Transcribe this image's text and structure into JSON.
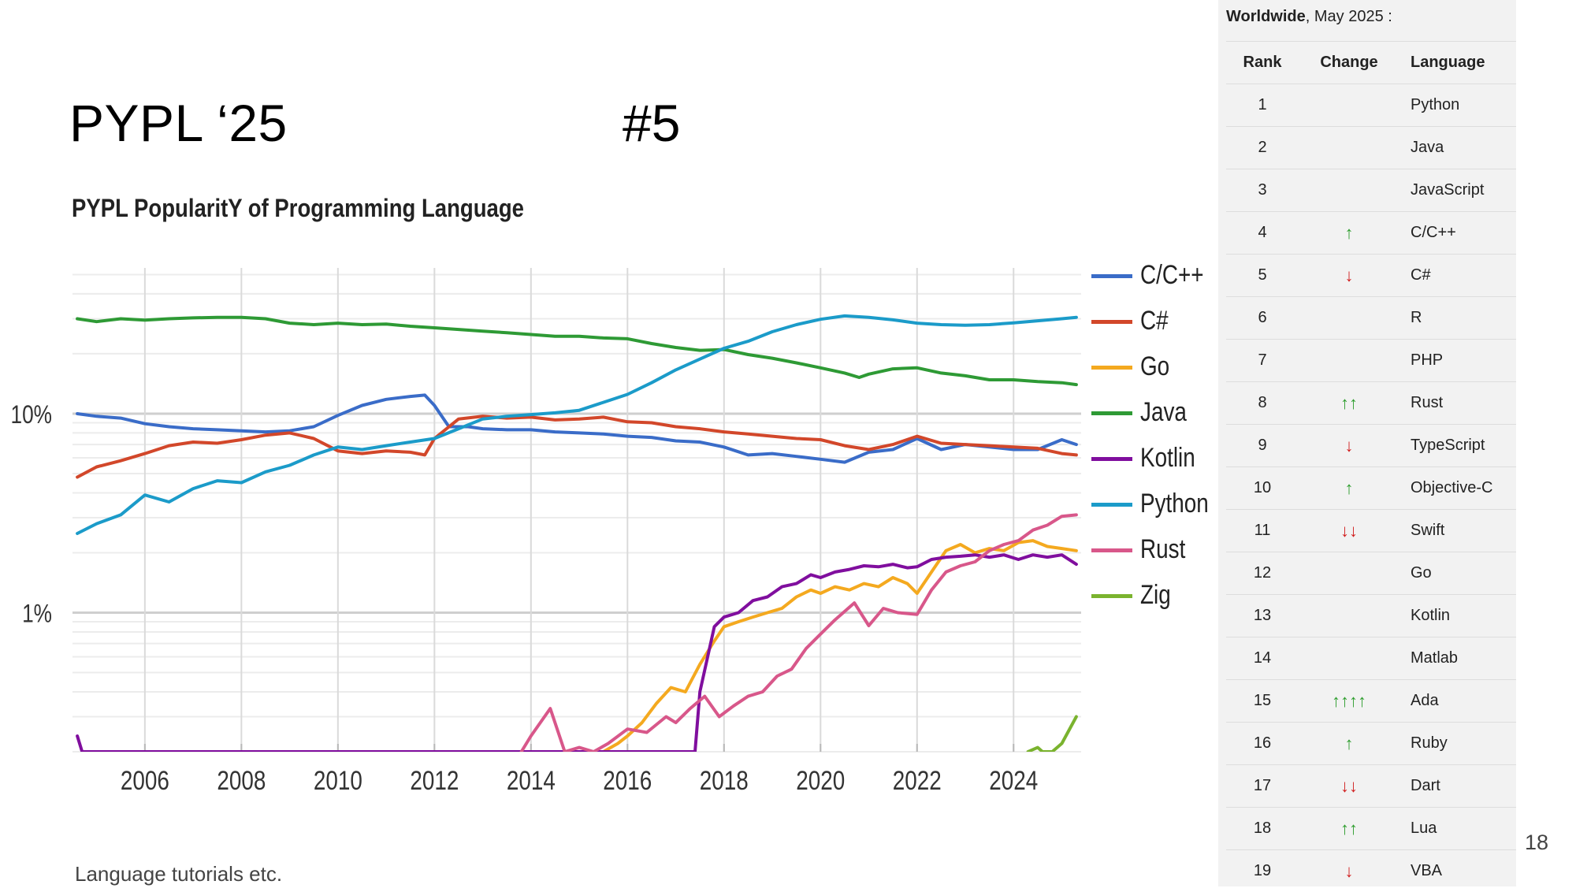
{
  "slide": {
    "title": "PYPL ‘25",
    "rank_label": "#5",
    "footer_note": "Language tutorials etc.",
    "page_number": "18"
  },
  "chart_data": {
    "type": "line",
    "title": "PYPL PopularitY of Programming Language",
    "xlabel": "",
    "ylabel": "",
    "yscale": "log",
    "ylim": [
      0.2,
      100
    ],
    "y_ticks": [
      "10%",
      "1%"
    ],
    "x_ticks": [
      "2006",
      "2008",
      "2010",
      "2012",
      "2014",
      "2016",
      "2018",
      "2020",
      "2022",
      "2024"
    ],
    "grid": true,
    "legend_position": "right",
    "series": [
      {
        "name": "C/C++",
        "color": "#3a6cc8",
        "x": [
          2004.6,
          2005.0,
          2005.5,
          2006.0,
          2006.5,
          2007.0,
          2007.5,
          2008.0,
          2008.5,
          2009.0,
          2009.5,
          2010.0,
          2010.5,
          2011.0,
          2011.5,
          2011.8,
          2012.0,
          2012.3,
          2012.7,
          2013.0,
          2013.5,
          2014.0,
          2014.5,
          2015.0,
          2015.5,
          2016.0,
          2016.5,
          2017.0,
          2017.5,
          2018.0,
          2018.5,
          2019.0,
          2019.5,
          2020.0,
          2020.5,
          2021.0,
          2021.5,
          2022.0,
          2022.5,
          2023.0,
          2023.5,
          2024.0,
          2024.5,
          2025.0,
          2025.3
        ],
        "y": [
          10.0,
          9.7,
          9.5,
          8.9,
          8.6,
          8.4,
          8.3,
          8.2,
          8.1,
          8.2,
          8.6,
          9.8,
          11.0,
          11.8,
          12.2,
          12.4,
          11.0,
          8.6,
          8.6,
          8.4,
          8.3,
          8.3,
          8.1,
          8.0,
          7.9,
          7.7,
          7.6,
          7.3,
          7.2,
          6.8,
          6.2,
          6.3,
          6.1,
          5.9,
          5.7,
          6.4,
          6.6,
          7.5,
          6.6,
          7.0,
          6.8,
          6.6,
          6.6,
          7.4,
          7.0
        ]
      },
      {
        "name": "C#",
        "color": "#d2472a",
        "x": [
          2004.6,
          2005.0,
          2005.5,
          2006.0,
          2006.5,
          2007.0,
          2007.5,
          2008.0,
          2008.5,
          2009.0,
          2009.5,
          2010.0,
          2010.5,
          2011.0,
          2011.5,
          2011.8,
          2012.0,
          2012.5,
          2013.0,
          2013.5,
          2014.0,
          2014.5,
          2015.0,
          2015.5,
          2016.0,
          2016.5,
          2017.0,
          2017.5,
          2018.0,
          2018.5,
          2019.0,
          2019.5,
          2020.0,
          2020.5,
          2021.0,
          2021.5,
          2022.0,
          2022.5,
          2023.0,
          2023.5,
          2024.0,
          2024.5,
          2025.0,
          2025.3
        ],
        "y": [
          4.8,
          5.4,
          5.8,
          6.3,
          6.9,
          7.2,
          7.1,
          7.4,
          7.8,
          8.0,
          7.5,
          6.5,
          6.3,
          6.5,
          6.4,
          6.2,
          7.5,
          9.4,
          9.7,
          9.5,
          9.6,
          9.3,
          9.4,
          9.6,
          9.1,
          9.0,
          8.6,
          8.4,
          8.1,
          7.9,
          7.7,
          7.5,
          7.4,
          6.9,
          6.6,
          7.0,
          7.7,
          7.1,
          7.0,
          6.9,
          6.8,
          6.7,
          6.3,
          6.2
        ]
      },
      {
        "name": "Go",
        "color": "#f4a91f",
        "x": [
          2015.2,
          2015.5,
          2015.8,
          2016.0,
          2016.3,
          2016.6,
          2016.9,
          2017.2,
          2017.5,
          2017.8,
          2018.0,
          2018.3,
          2018.6,
          2018.9,
          2019.2,
          2019.5,
          2019.8,
          2020.0,
          2020.3,
          2020.6,
          2020.9,
          2021.2,
          2021.5,
          2021.8,
          2022.0,
          2022.3,
          2022.6,
          2022.9,
          2023.2,
          2023.5,
          2023.8,
          2024.1,
          2024.4,
          2024.7,
          2025.0,
          2025.3
        ],
        "y": [
          0.2,
          0.2,
          0.22,
          0.24,
          0.28,
          0.35,
          0.42,
          0.4,
          0.55,
          0.72,
          0.85,
          0.9,
          0.95,
          1.0,
          1.05,
          1.2,
          1.3,
          1.25,
          1.35,
          1.3,
          1.4,
          1.35,
          1.5,
          1.4,
          1.25,
          1.6,
          2.05,
          2.2,
          2.0,
          2.1,
          2.05,
          2.25,
          2.3,
          2.15,
          2.1,
          2.05
        ]
      },
      {
        "name": "Java",
        "color": "#2e9a35",
        "x": [
          2004.6,
          2005.0,
          2005.5,
          2006.0,
          2006.5,
          2007.0,
          2007.5,
          2008.0,
          2008.5,
          2009.0,
          2009.5,
          2010.0,
          2010.5,
          2011.0,
          2011.5,
          2012.0,
          2012.5,
          2013.0,
          2013.5,
          2014.0,
          2014.5,
          2015.0,
          2015.5,
          2016.0,
          2016.5,
          2017.0,
          2017.5,
          2018.0,
          2018.5,
          2019.0,
          2019.5,
          2020.0,
          2020.5,
          2020.8,
          2021.0,
          2021.5,
          2022.0,
          2022.5,
          2023.0,
          2023.5,
          2024.0,
          2024.5,
          2025.0,
          2025.3
        ],
        "y": [
          30.0,
          29.0,
          30.0,
          29.5,
          30.0,
          30.3,
          30.5,
          30.5,
          30.0,
          28.5,
          28.0,
          28.5,
          28.0,
          28.2,
          27.5,
          27.0,
          26.5,
          26.0,
          25.5,
          25.0,
          24.5,
          24.5,
          24.0,
          23.8,
          22.5,
          21.5,
          20.8,
          21.0,
          19.8,
          19.0,
          18.0,
          17.0,
          16.0,
          15.2,
          15.8,
          16.8,
          17.0,
          16.0,
          15.5,
          14.8,
          14.8,
          14.5,
          14.3,
          14.0
        ]
      },
      {
        "name": "Kotlin",
        "color": "#800e9e",
        "x": [
          2004.6,
          2004.7,
          2017.4,
          2017.5,
          2017.8,
          2018.0,
          2018.3,
          2018.6,
          2018.9,
          2019.2,
          2019.5,
          2019.8,
          2020.0,
          2020.3,
          2020.6,
          2020.9,
          2021.2,
          2021.5,
          2021.8,
          2022.0,
          2022.3,
          2022.6,
          2022.9,
          2023.2,
          2023.5,
          2023.8,
          2024.1,
          2024.4,
          2024.7,
          2025.0,
          2025.3
        ],
        "y": [
          0.24,
          0.2,
          0.2,
          0.4,
          0.85,
          0.95,
          1.0,
          1.15,
          1.2,
          1.35,
          1.4,
          1.55,
          1.5,
          1.6,
          1.65,
          1.72,
          1.7,
          1.75,
          1.68,
          1.7,
          1.85,
          1.9,
          1.92,
          1.95,
          1.9,
          1.95,
          1.85,
          1.95,
          1.9,
          1.95,
          1.75
        ]
      },
      {
        "name": "Python",
        "color": "#1b9bc9",
        "x": [
          2004.6,
          2005.0,
          2005.5,
          2006.0,
          2006.5,
          2007.0,
          2007.5,
          2008.0,
          2008.5,
          2009.0,
          2009.5,
          2010.0,
          2010.5,
          2011.0,
          2011.5,
          2012.0,
          2012.5,
          2013.0,
          2013.5,
          2014.0,
          2014.5,
          2015.0,
          2015.5,
          2016.0,
          2016.5,
          2017.0,
          2017.5,
          2018.0,
          2018.5,
          2019.0,
          2019.5,
          2020.0,
          2020.5,
          2021.0,
          2021.5,
          2022.0,
          2022.5,
          2023.0,
          2023.5,
          2024.0,
          2024.5,
          2025.0,
          2025.3
        ],
        "y": [
          2.5,
          2.8,
          3.1,
          3.9,
          3.6,
          4.2,
          4.6,
          4.5,
          5.1,
          5.5,
          6.2,
          6.8,
          6.6,
          6.9,
          7.2,
          7.5,
          8.4,
          9.4,
          9.7,
          9.9,
          10.1,
          10.4,
          11.4,
          12.5,
          14.3,
          16.6,
          18.8,
          21.3,
          23.1,
          25.8,
          28.0,
          29.8,
          31.0,
          30.5,
          29.6,
          28.5,
          28.0,
          27.8,
          28.0,
          28.6,
          29.3,
          30.0,
          30.5
        ]
      },
      {
        "name": "Rust",
        "color": "#d8578a",
        "x": [
          2013.8,
          2014.0,
          2014.4,
          2014.7,
          2015.0,
          2015.3,
          2015.6,
          2016.0,
          2016.4,
          2016.8,
          2017.0,
          2017.3,
          2017.6,
          2017.9,
          2018.2,
          2018.5,
          2018.8,
          2019.1,
          2019.4,
          2019.7,
          2020.0,
          2020.3,
          2020.7,
          2021.0,
          2021.3,
          2021.6,
          2022.0,
          2022.3,
          2022.6,
          2022.9,
          2023.2,
          2023.5,
          2023.8,
          2024.1,
          2024.4,
          2024.7,
          2025.0,
          2025.3
        ],
        "y": [
          0.2,
          0.24,
          0.33,
          0.2,
          0.21,
          0.2,
          0.22,
          0.26,
          0.25,
          0.3,
          0.28,
          0.33,
          0.38,
          0.3,
          0.34,
          0.38,
          0.4,
          0.48,
          0.52,
          0.66,
          0.78,
          0.92,
          1.12,
          0.86,
          1.05,
          1.0,
          0.98,
          1.3,
          1.6,
          1.72,
          1.8,
          2.05,
          2.2,
          2.3,
          2.6,
          2.75,
          3.05,
          3.1
        ]
      },
      {
        "name": "Zig",
        "color": "#7ab32e",
        "x": [
          2024.3,
          2024.5,
          2024.6,
          2024.8,
          2025.0,
          2025.3
        ],
        "y": [
          0.2,
          0.21,
          0.2,
          0.2,
          0.22,
          0.3
        ]
      }
    ]
  }
}
